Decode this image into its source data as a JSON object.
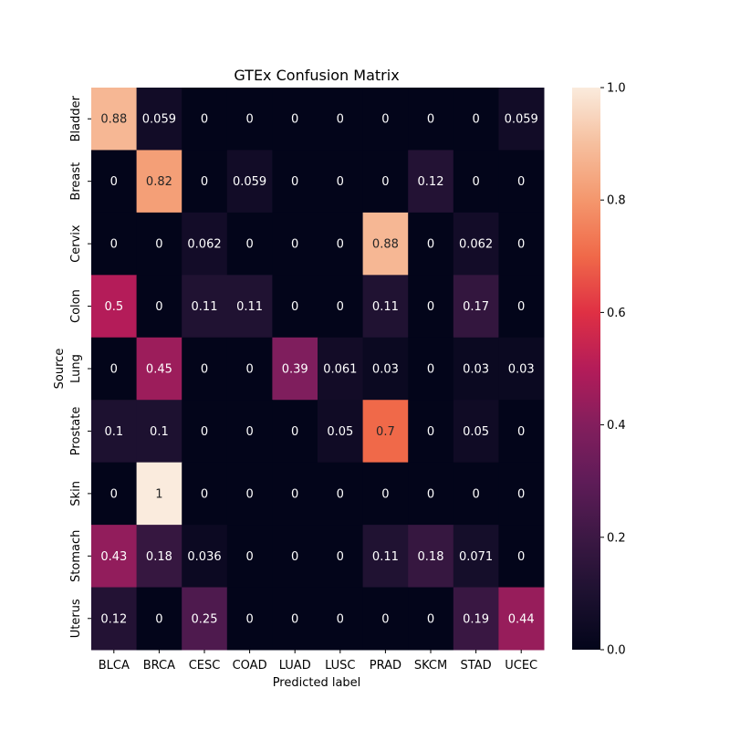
{
  "chart_data": {
    "type": "heatmap",
    "title": "GTEx Confusion Matrix",
    "xlabel": "Predicted label",
    "ylabel": "Source",
    "x_categories": [
      "BLCA",
      "BRCA",
      "CESC",
      "COAD",
      "LUAD",
      "LUSC",
      "PRAD",
      "SKCM",
      "STAD",
      "UCEC"
    ],
    "y_categories": [
      "Bladder",
      "Breast",
      "Cervix",
      "Colon",
      "Lung",
      "Prostate",
      "Skin",
      "Stomach",
      "Uterus"
    ],
    "values": [
      [
        0.88,
        0.059,
        0,
        0,
        0,
        0,
        0,
        0,
        0,
        0.059
      ],
      [
        0,
        0.82,
        0,
        0.059,
        0,
        0,
        0,
        0.12,
        0,
        0
      ],
      [
        0,
        0,
        0.062,
        0,
        0,
        0,
        0.88,
        0,
        0.062,
        0
      ],
      [
        0.5,
        0,
        0.11,
        0.11,
        0,
        0,
        0.11,
        0,
        0.17,
        0
      ],
      [
        0,
        0.45,
        0,
        0,
        0.39,
        0.061,
        0.03,
        0,
        0.03,
        0.03
      ],
      [
        0.1,
        0.1,
        0,
        0,
        0,
        0.05,
        0.7,
        0,
        0.05,
        0
      ],
      [
        0,
        1,
        0,
        0,
        0,
        0,
        0,
        0,
        0,
        0
      ],
      [
        0.43,
        0.18,
        0.036,
        0,
        0,
        0,
        0.11,
        0.18,
        0.071,
        0
      ],
      [
        0.12,
        0,
        0.25,
        0,
        0,
        0,
        0,
        0,
        0.19,
        0.44
      ]
    ],
    "labels": [
      [
        "0.88",
        "0.059",
        "0",
        "0",
        "0",
        "0",
        "0",
        "0",
        "0",
        "0.059"
      ],
      [
        "0",
        "0.82",
        "0",
        "0.059",
        "0",
        "0",
        "0",
        "0.12",
        "0",
        "0"
      ],
      [
        "0",
        "0",
        "0.062",
        "0",
        "0",
        "0",
        "0.88",
        "0",
        "0.062",
        "0"
      ],
      [
        "0.5",
        "0",
        "0.11",
        "0.11",
        "0",
        "0",
        "0.11",
        "0",
        "0.17",
        "0"
      ],
      [
        "0",
        "0.45",
        "0",
        "0",
        "0.39",
        "0.061",
        "0.03",
        "0",
        "0.03",
        "0.03"
      ],
      [
        "0.1",
        "0.1",
        "0",
        "0",
        "0",
        "0.05",
        "0.7",
        "0",
        "0.05",
        "0"
      ],
      [
        "0",
        "1",
        "0",
        "0",
        "0",
        "0",
        "0",
        "0",
        "0",
        "0"
      ],
      [
        "0.43",
        "0.18",
        "0.036",
        "0",
        "0",
        "0",
        "0.11",
        "0.18",
        "0.071",
        "0"
      ],
      [
        "0.12",
        "0",
        "0.25",
        "0",
        "0",
        "0",
        "0",
        "0",
        "0.19",
        "0.44"
      ]
    ],
    "colorbar": {
      "range": [
        0,
        1
      ],
      "ticks": [
        0.0,
        0.2,
        0.4,
        0.6,
        0.8,
        1.0
      ],
      "tick_labels": [
        "0.0",
        "0.2",
        "0.4",
        "0.6",
        "0.8",
        "1.0"
      ],
      "colormap": "rocket"
    }
  }
}
